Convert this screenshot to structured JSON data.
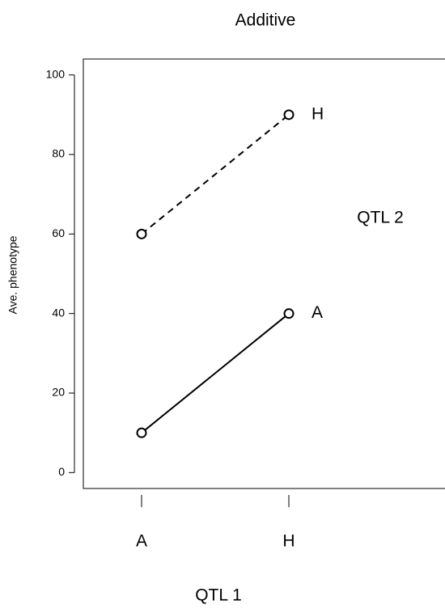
{
  "chart_data": {
    "type": "line",
    "title": "Additive",
    "xlabel": "QTL 1",
    "ylabel": "Ave. phenotype",
    "legend_title": "QTL 2",
    "categories": [
      "A",
      "H"
    ],
    "series": [
      {
        "name": "A",
        "color": "#000000",
        "dash": "solid",
        "values": [
          10,
          40
        ]
      },
      {
        "name": "H",
        "color": "#000000",
        "dash": "dashed",
        "values": [
          60,
          90
        ]
      }
    ],
    "marker": "circle",
    "ylim": [
      -4,
      104
    ],
    "yticks": [
      0,
      20,
      40,
      60,
      80,
      100
    ]
  }
}
